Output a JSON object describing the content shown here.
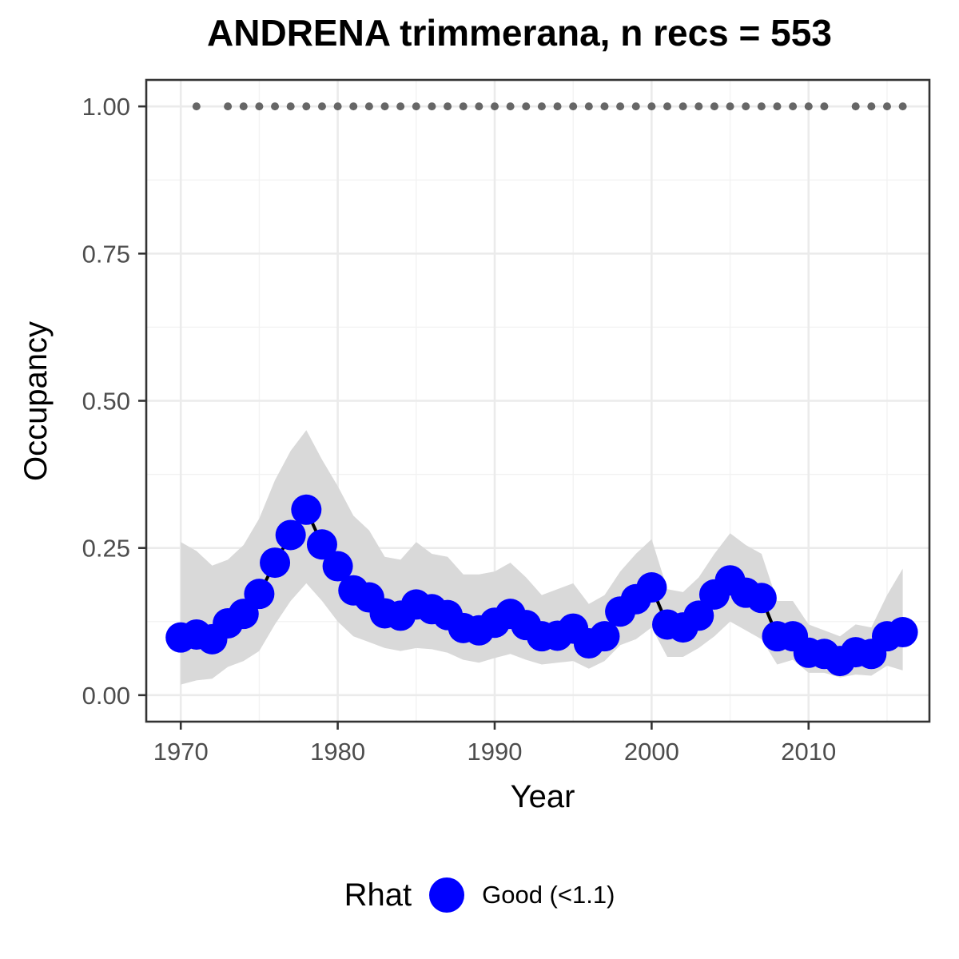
{
  "chart_data": {
    "type": "line",
    "title": "ANDRENA trimmerana, n recs = 553",
    "xlabel": "Year",
    "ylabel": "Occupancy",
    "xlim": [
      1967.8,
      2017.7
    ],
    "ylim": [
      -0.045,
      1.045
    ],
    "x_ticks": [
      1970,
      1980,
      1990,
      2000,
      2010
    ],
    "x_tick_labels": [
      "1970",
      "1980",
      "1990",
      "2000",
      "2010"
    ],
    "y_ticks": [
      0,
      0.25,
      0.5,
      0.75,
      1
    ],
    "y_tick_labels": [
      "0.00",
      "0.25",
      "0.50",
      "0.75",
      "1.00"
    ],
    "grid": true,
    "legend_position": "bottom",
    "legend_title": "Rhat",
    "series": [
      {
        "name": "Good (<1.1)",
        "color": "#0000ff",
        "x": [
          1970,
          1971,
          1972,
          1973,
          1974,
          1975,
          1976,
          1977,
          1978,
          1979,
          1980,
          1981,
          1982,
          1983,
          1984,
          1985,
          1986,
          1987,
          1988,
          1989,
          1990,
          1991,
          1992,
          1993,
          1994,
          1995,
          1996,
          1997,
          1998,
          1999,
          2000,
          2001,
          2002,
          2003,
          2004,
          2005,
          2006,
          2007,
          2008,
          2009,
          2010,
          2011,
          2012,
          2013,
          2014,
          2015,
          2016
        ],
        "y": [
          0.098,
          0.103,
          0.095,
          0.122,
          0.138,
          0.172,
          0.225,
          0.272,
          0.315,
          0.256,
          0.219,
          0.178,
          0.166,
          0.139,
          0.135,
          0.154,
          0.146,
          0.136,
          0.114,
          0.11,
          0.123,
          0.138,
          0.119,
          0.1,
          0.101,
          0.113,
          0.088,
          0.1,
          0.142,
          0.163,
          0.183,
          0.12,
          0.115,
          0.135,
          0.171,
          0.195,
          0.174,
          0.165,
          0.1,
          0.1,
          0.072,
          0.07,
          0.058,
          0.073,
          0.07,
          0.1,
          0.107
        ],
        "lower": [
          0.018,
          0.025,
          0.028,
          0.048,
          0.058,
          0.075,
          0.12,
          0.16,
          0.19,
          0.16,
          0.125,
          0.1,
          0.09,
          0.08,
          0.075,
          0.08,
          0.078,
          0.072,
          0.06,
          0.055,
          0.063,
          0.07,
          0.06,
          0.052,
          0.055,
          0.058,
          0.045,
          0.058,
          0.085,
          0.095,
          0.115,
          0.065,
          0.065,
          0.08,
          0.1,
          0.125,
          0.11,
          0.095,
          0.052,
          0.06,
          0.038,
          0.038,
          0.03,
          0.035,
          0.033,
          0.05,
          0.042
        ],
        "upper": [
          0.26,
          0.245,
          0.22,
          0.23,
          0.255,
          0.3,
          0.365,
          0.415,
          0.45,
          0.4,
          0.355,
          0.305,
          0.28,
          0.235,
          0.23,
          0.26,
          0.24,
          0.235,
          0.205,
          0.205,
          0.21,
          0.225,
          0.2,
          0.17,
          0.18,
          0.19,
          0.155,
          0.17,
          0.21,
          0.24,
          0.265,
          0.18,
          0.175,
          0.2,
          0.24,
          0.275,
          0.255,
          0.24,
          0.16,
          0.16,
          0.12,
          0.11,
          0.1,
          0.12,
          0.115,
          0.17,
          0.215
        ]
      }
    ],
    "detection_markers": {
      "y": 1,
      "color": "#666666",
      "years": [
        1971,
        1973,
        1974,
        1975,
        1976,
        1977,
        1978,
        1979,
        1980,
        1981,
        1982,
        1983,
        1984,
        1985,
        1986,
        1987,
        1988,
        1989,
        1990,
        1991,
        1992,
        1993,
        1994,
        1995,
        1996,
        1997,
        1998,
        1999,
        2000,
        2001,
        2002,
        2003,
        2004,
        2005,
        2006,
        2007,
        2008,
        2009,
        2010,
        2011,
        2013,
        2014,
        2015,
        2016
      ]
    },
    "ribbon_color": "#d9d9d9"
  }
}
